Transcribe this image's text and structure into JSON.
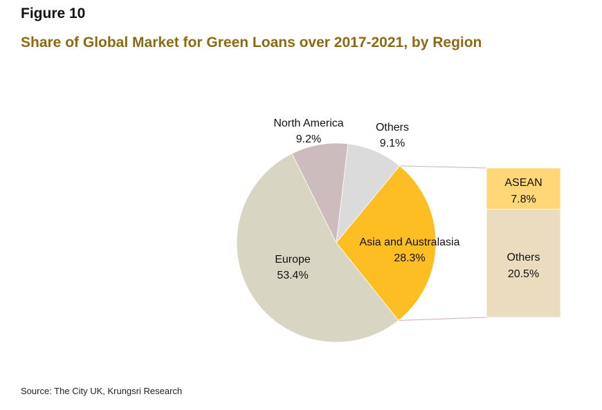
{
  "figure_label": "Figure 10",
  "title": "Share of Global Market for Green Loans over 2017-2021, by Region",
  "source": "Source: The City UK, Krungsri Research",
  "chart_data": [
    {
      "type": "pie",
      "title": "Share of Global Market for Green Loans over 2017-2021, by Region",
      "slices": [
        {
          "label": "Asia and Australasia",
          "value": 28.3,
          "value_label": "28.3%",
          "color": "#fdbe23"
        },
        {
          "label": "Europe",
          "value": 53.4,
          "value_label": "53.4%",
          "color": "#d9d5c3"
        },
        {
          "label": "North America",
          "value": 9.2,
          "value_label": "9.2%",
          "color": "#cdbcbd"
        },
        {
          "label": "Others",
          "value": 9.1,
          "value_label": "9.1%",
          "color": "#dbdbdb"
        }
      ]
    },
    {
      "type": "bar",
      "stacked": true,
      "breakdown_of": "Asia and Australasia",
      "segments": [
        {
          "label": "ASEAN",
          "value": 7.8,
          "value_label": "7.8%",
          "color": "#ffd776"
        },
        {
          "label": "Others",
          "value": 20.5,
          "value_label": "20.5%",
          "color": "#ebdcbf"
        }
      ]
    }
  ]
}
